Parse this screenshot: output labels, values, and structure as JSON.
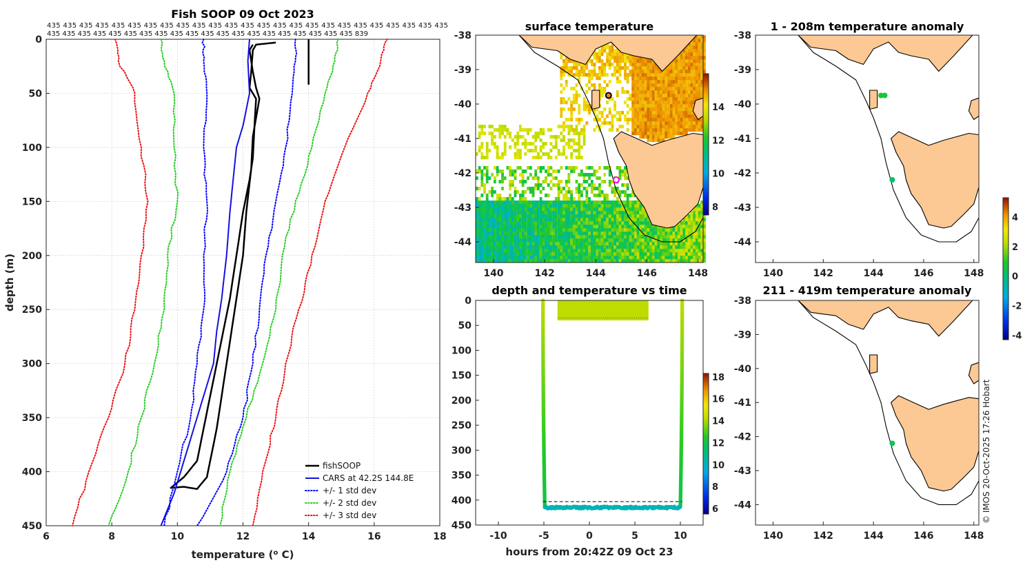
{
  "colors": {
    "fishsoop": "#000000",
    "cars": "#1010e0",
    "sd1": "#0000ff",
    "sd2": "#22cc22",
    "sd3": "#ee1111",
    "land": "#fcc894",
    "coast": "#000000",
    "highlight": "#ff00ff"
  },
  "footer": "© IMOS 20-Oct-2025 17:26 Hobart",
  "chart_data": [
    {
      "id": "profile",
      "type": "line",
      "title": "Fish SOOP 09 Oct 2023",
      "xlabel": "temperature (",
      "xlabel_sup": "o",
      "xlabel_tail": " C)",
      "ylabel": "depth (m)",
      "xlim": [
        6,
        18
      ],
      "ylim": [
        0,
        450
      ],
      "y_reversed": true,
      "xticks": [
        6,
        8,
        10,
        12,
        14,
        16,
        18
      ],
      "yticks": [
        0,
        50,
        100,
        150,
        200,
        250,
        300,
        350,
        400,
        450
      ],
      "count_row1": "435 435 435 435 435 435 435 435 435 435 435 435 435 435 435 435 435 435 435 435 435 435 435 435 435",
      "count_row2": "435 435 435 435 435 435 435 435 435 435 435 435 435 435 435 435 435 435 435 435 839",
      "legend_position": "bottom-right",
      "series": [
        {
          "name": "fishSOOP",
          "style": "solid",
          "width": 2.5,
          "color_key": "fishsoop",
          "points": [
            [
              13.0,
              3
            ],
            [
              12.4,
              5
            ],
            [
              12.3,
              10
            ],
            [
              12.25,
              30
            ],
            [
              12.2,
              45
            ],
            [
              12.3,
              50
            ],
            [
              12.4,
              55
            ],
            [
              12.35,
              80
            ],
            [
              12.3,
              110
            ],
            [
              12.2,
              130
            ],
            [
              12.0,
              160
            ],
            [
              11.8,
              200
            ],
            [
              11.6,
              240
            ],
            [
              11.4,
              270
            ],
            [
              11.2,
              300
            ],
            [
              11.0,
              330
            ],
            [
              10.8,
              360
            ],
            [
              10.6,
              390
            ],
            [
              10.2,
              405
            ],
            [
              9.8,
              415
            ],
            [
              10.2,
              414
            ],
            [
              10.6,
              416
            ],
            [
              10.9,
              405
            ],
            [
              11.0,
              390
            ],
            [
              11.2,
              360
            ],
            [
              11.4,
              320
            ],
            [
              11.6,
              280
            ],
            [
              11.8,
              240
            ],
            [
              12.0,
              200
            ],
            [
              12.1,
              160
            ],
            [
              12.25,
              120
            ],
            [
              12.3,
              90
            ],
            [
              12.5,
              55
            ],
            [
              12.4,
              45
            ],
            [
              12.3,
              30
            ],
            [
              12.2,
              10
            ],
            [
              12.3,
              5
            ]
          ]
        },
        {
          "name": "fishSOOP-tail",
          "style": "solid",
          "width": 2.5,
          "color_key": "fishsoop",
          "legend": false,
          "points": [
            [
              14.0,
              0
            ],
            [
              14.0,
              42
            ]
          ]
        },
        {
          "name": "CARS at 42.2S 144.8E",
          "style": "solid",
          "width": 2,
          "color_key": "cars",
          "points": [
            [
              12.2,
              0
            ],
            [
              12.15,
              20
            ],
            [
              12.2,
              50
            ],
            [
              12.0,
              80
            ],
            [
              11.8,
              100
            ],
            [
              11.7,
              130
            ],
            [
              11.6,
              160
            ],
            [
              11.5,
              200
            ],
            [
              11.35,
              240
            ],
            [
              11.2,
              270
            ],
            [
              11.1,
              300
            ],
            [
              10.8,
              330
            ],
            [
              10.5,
              360
            ],
            [
              10.2,
              390
            ],
            [
              9.9,
              420
            ],
            [
              9.5,
              450
            ]
          ]
        },
        {
          "name": "+/- 1 std dev",
          "style": "dotted",
          "width": 2,
          "color_key": "sd1",
          "points": [
            [
              10.8,
              0
            ],
            [
              10.8,
              20
            ],
            [
              10.9,
              50
            ],
            [
              10.8,
              100
            ],
            [
              10.9,
              150
            ],
            [
              10.8,
              200
            ],
            [
              10.8,
              250
            ],
            [
              10.6,
              300
            ],
            [
              10.4,
              350
            ],
            [
              10.0,
              400
            ],
            [
              9.6,
              450
            ]
          ]
        },
        {
          "name": "+/- 1 std dev hi",
          "style": "dotted",
          "width": 2,
          "color_key": "sd1",
          "legend": false,
          "points": [
            [
              13.6,
              0
            ],
            [
              13.6,
              20
            ],
            [
              13.5,
              50
            ],
            [
              13.3,
              100
            ],
            [
              13.0,
              150
            ],
            [
              12.7,
              200
            ],
            [
              12.5,
              250
            ],
            [
              12.3,
              300
            ],
            [
              12.0,
              350
            ],
            [
              11.5,
              400
            ],
            [
              10.6,
              450
            ]
          ]
        },
        {
          "name": "+/- 2 std dev",
          "style": "dotted",
          "width": 2,
          "color_key": "sd2",
          "points": [
            [
              9.5,
              0
            ],
            [
              9.6,
              20
            ],
            [
              9.9,
              50
            ],
            [
              9.9,
              100
            ],
            [
              10.0,
              150
            ],
            [
              9.7,
              200
            ],
            [
              9.6,
              250
            ],
            [
              9.3,
              300
            ],
            [
              8.9,
              350
            ],
            [
              8.5,
              400
            ],
            [
              7.9,
              450
            ]
          ]
        },
        {
          "name": "+/- 2 std dev hi",
          "style": "dotted",
          "width": 2,
          "color_key": "sd2",
          "legend": false,
          "points": [
            [
              14.9,
              0
            ],
            [
              14.8,
              20
            ],
            [
              14.5,
              50
            ],
            [
              14.1,
              100
            ],
            [
              13.6,
              150
            ],
            [
              13.2,
              200
            ],
            [
              13.0,
              250
            ],
            [
              12.6,
              300
            ],
            [
              12.1,
              350
            ],
            [
              11.6,
              400
            ],
            [
              11.3,
              450
            ]
          ]
        },
        {
          "name": "+/- 3 std dev",
          "style": "dotted",
          "width": 2,
          "color_key": "sd3",
          "points": [
            [
              8.1,
              0
            ],
            [
              8.2,
              20
            ],
            [
              8.7,
              50
            ],
            [
              8.9,
              100
            ],
            [
              9.1,
              150
            ],
            [
              8.9,
              200
            ],
            [
              8.7,
              250
            ],
            [
              8.4,
              300
            ],
            [
              7.9,
              350
            ],
            [
              7.3,
              400
            ],
            [
              6.8,
              450
            ]
          ]
        },
        {
          "name": "+/- 3 std dev hi",
          "style": "dotted",
          "width": 2,
          "color_key": "sd3",
          "legend": false,
          "points": [
            [
              16.4,
              0
            ],
            [
              16.2,
              20
            ],
            [
              15.8,
              50
            ],
            [
              15.1,
              100
            ],
            [
              14.5,
              150
            ],
            [
              14.1,
              200
            ],
            [
              13.7,
              250
            ],
            [
              13.3,
              300
            ],
            [
              13.0,
              350
            ],
            [
              12.6,
              400
            ],
            [
              12.3,
              450
            ]
          ]
        }
      ]
    },
    {
      "id": "surface",
      "type": "heatmap",
      "title": "surface temperature",
      "xlim": [
        139.3,
        148.2
      ],
      "ylim": [
        -44.6,
        -38
      ],
      "xticks": [
        140,
        142,
        144,
        146,
        148
      ],
      "yticks": [
        -38,
        -39,
        -40,
        -41,
        -42,
        -43,
        -44
      ],
      "colorbar": {
        "min": 7.5,
        "max": 16,
        "ticks": [
          8,
          10,
          12,
          14
        ]
      },
      "markers": [
        {
          "name": "king-island-marker",
          "lon": 144.5,
          "lat": -39.75,
          "fill": "#f08020",
          "edge": "#000000"
        },
        {
          "name": "vessel-position-marker",
          "lon": 144.8,
          "lat": -42.2,
          "fill": "#ffffff",
          "edge": "#ff00ff"
        }
      ]
    },
    {
      "id": "timeseries",
      "type": "scatter",
      "title": "depth and temperature vs time",
      "xlabel": "hours from 20:42Z 09 Oct 23",
      "xlim": [
        -12.5,
        12.5
      ],
      "ylim": [
        0,
        450
      ],
      "y_reversed": true,
      "xticks": [
        -10,
        -5,
        0,
        5,
        10
      ],
      "yticks": [
        0,
        50,
        100,
        150,
        200,
        250,
        300,
        350,
        400,
        450
      ],
      "dashed_depth": 403,
      "colorbar": {
        "min": 5.5,
        "max": 18.3,
        "ticks": [
          6,
          8,
          10,
          12,
          14,
          16,
          18
        ]
      },
      "dive": {
        "start_h": -5.1,
        "bottom_start_h": -4.9,
        "bottom_end_h": 10.0,
        "end_h": 10.2,
        "bottom_depth": 415,
        "bottom_temp": 10.2,
        "surface_temp": 14.2
      },
      "surface_patch": {
        "x0_h": -3.5,
        "x1_h": 6.5,
        "depth_max": 40,
        "temp": 14.2
      }
    },
    {
      "id": "anom_upper",
      "type": "scatter",
      "title": "1 - 208m temperature anomaly",
      "xlim": [
        139.3,
        148.2
      ],
      "ylim": [
        -44.6,
        -38
      ],
      "xticks": [
        140,
        142,
        144,
        146,
        148
      ],
      "yticks": [
        -38,
        -39,
        -40,
        -41,
        -42,
        -43,
        -44
      ],
      "points": [
        {
          "lon": 144.3,
          "lat": -39.75,
          "anomaly": 0.8
        },
        {
          "lon": 144.45,
          "lat": -39.75,
          "anomaly": 0.8
        },
        {
          "lon": 144.75,
          "lat": -42.2,
          "anomaly": 0.3
        }
      ],
      "colorbar": {
        "min": -4.3,
        "max": 5.3,
        "ticks": [
          -4,
          -2,
          0,
          2,
          4
        ]
      }
    },
    {
      "id": "anom_lower",
      "type": "scatter",
      "title": "211 - 419m temperature anomaly",
      "xlim": [
        139.3,
        148.2
      ],
      "ylim": [
        -44.6,
        -38
      ],
      "xticks": [
        140,
        142,
        144,
        146,
        148
      ],
      "yticks": [
        -38,
        -39,
        -40,
        -41,
        -42,
        -43,
        -44
      ],
      "points": [
        {
          "lon": 144.75,
          "lat": -42.2,
          "anomaly": 0.5
        }
      ]
    }
  ]
}
